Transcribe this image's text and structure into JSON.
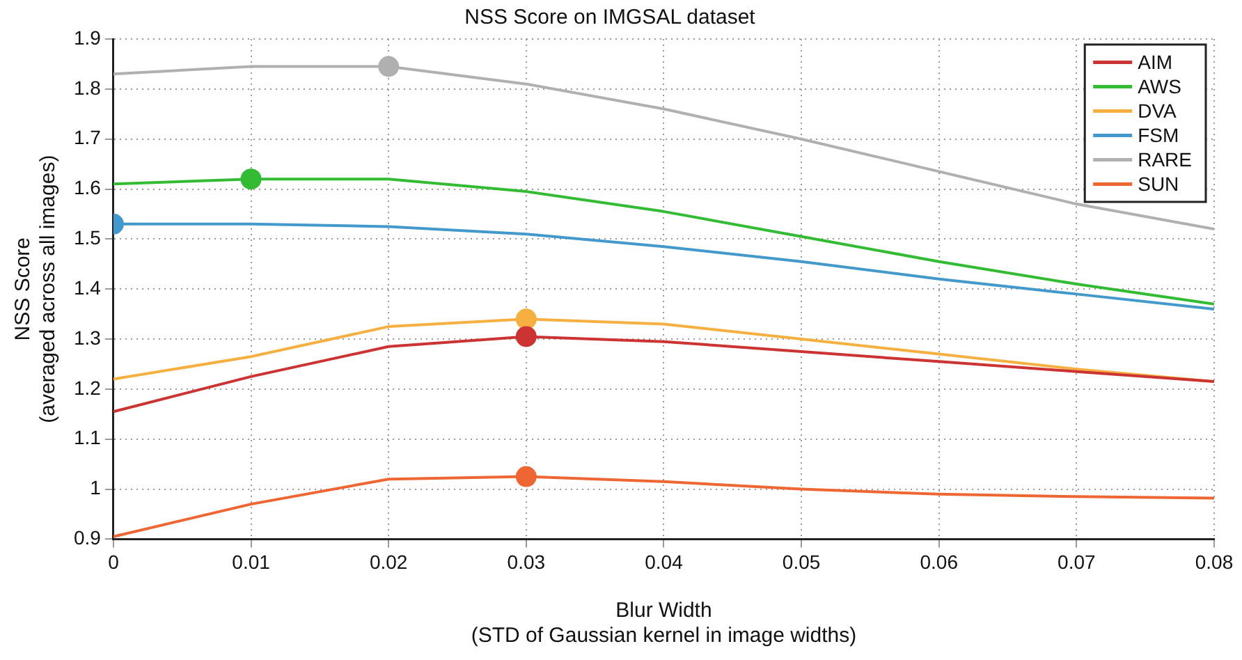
{
  "chart_data": {
    "type": "line",
    "title": "NSS Score on IMGSAL dataset",
    "xlabel": "Blur Width\n(STD of Gaussian kernel in image widths)",
    "ylabel": "NSS Score\n(averaged across all images)",
    "x": [
      0,
      0.01,
      0.02,
      0.03,
      0.04,
      0.05,
      0.06,
      0.07,
      0.08
    ],
    "series": [
      {
        "name": "AIM",
        "color": "#cc3333",
        "values": [
          1.155,
          1.225,
          1.285,
          1.305,
          1.295,
          1.275,
          1.255,
          1.235,
          1.215
        ]
      },
      {
        "name": "AWS",
        "color": "#33bb33",
        "values": [
          1.61,
          1.62,
          1.62,
          1.595,
          1.555,
          1.505,
          1.455,
          1.41,
          1.37
        ]
      },
      {
        "name": "DVA",
        "color": "#f5b041",
        "values": [
          1.22,
          1.265,
          1.325,
          1.34,
          1.33,
          1.3,
          1.27,
          1.24,
          1.215
        ]
      },
      {
        "name": "FSM",
        "color": "#4499cc",
        "values": [
          1.53,
          1.53,
          1.525,
          1.51,
          1.485,
          1.455,
          1.42,
          1.39,
          1.36
        ]
      },
      {
        "name": "RARE",
        "color": "#b0b0b0",
        "values": [
          1.83,
          1.845,
          1.845,
          1.81,
          1.76,
          1.7,
          1.635,
          1.57,
          1.52
        ]
      },
      {
        "name": "SUN",
        "color": "#ee6633",
        "values": [
          0.905,
          0.97,
          1.02,
          1.025,
          1.015,
          1.0,
          0.99,
          0.985,
          0.982
        ]
      },
      {
        "type": "scatter",
        "marker": "circle",
        "color": "#cc3333",
        "x": [
          0.03
        ],
        "values": [
          1.305
        ]
      },
      {
        "type": "scatter",
        "marker": "circle",
        "color": "#33bb33",
        "x": [
          0.01
        ],
        "values": [
          1.62
        ]
      },
      {
        "type": "scatter",
        "marker": "circle",
        "color": "#f5b041",
        "x": [
          0.03
        ],
        "values": [
          1.34
        ]
      },
      {
        "type": "scatter",
        "marker": "circle",
        "color": "#4499cc",
        "x": [
          0
        ],
        "values": [
          1.53
        ]
      },
      {
        "type": "scatter",
        "marker": "circle",
        "color": "#b0b0b0",
        "x": [
          0.02
        ],
        "values": [
          1.845
        ]
      },
      {
        "type": "scatter",
        "marker": "circle",
        "color": "#ee6633",
        "x": [
          0.03
        ],
        "values": [
          1.025
        ]
      }
    ],
    "xlim": [
      0,
      0.08
    ],
    "xticks": [
      0,
      0.01,
      0.02,
      0.03,
      0.04,
      0.05,
      0.06,
      0.07,
      0.08
    ],
    "ylim": [
      0.9,
      1.9
    ],
    "yticks": [
      0.9,
      1,
      1.1,
      1.2,
      1.3,
      1.4,
      1.5,
      1.6,
      1.7,
      1.8,
      1.9
    ],
    "grid": true,
    "legend": "top right",
    "marker": "none",
    "line_style": "solid"
  }
}
